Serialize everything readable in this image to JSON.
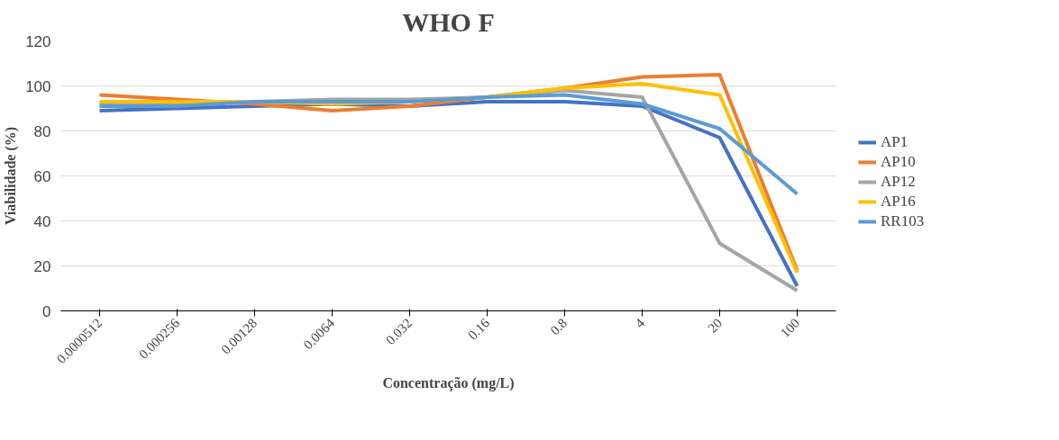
{
  "chart_data": {
    "type": "line",
    "title": "WHO F",
    "xlabel": "Concentração (mg/L)",
    "ylabel": "Viabilidade (%)",
    "categories": [
      "0.0000512",
      "0.000256",
      "0.00128",
      "0.0064",
      "0.032",
      "0.16",
      "0.8",
      "4",
      "20",
      "100"
    ],
    "series": [
      {
        "name": "AP1",
        "color": "#4472c4",
        "values": [
          89,
          90,
          91,
          92,
          91,
          93,
          93,
          91,
          77,
          11
        ]
      },
      {
        "name": "AP10",
        "color": "#ed7d31",
        "values": [
          96,
          94,
          92,
          89,
          91,
          95,
          99,
          104,
          105,
          18
        ]
      },
      {
        "name": "AP12",
        "color": "#a5a5a5",
        "values": [
          92,
          92,
          93,
          94,
          94,
          95,
          98,
          95,
          30,
          9
        ]
      },
      {
        "name": "AP16",
        "color": "#ffc000",
        "values": [
          93,
          93,
          93,
          92,
          93,
          95,
          99,
          101,
          96,
          17
        ]
      },
      {
        "name": "RR103",
        "color": "#5b9bd5",
        "values": [
          91,
          91,
          93,
          93,
          93,
          95,
          96,
          92,
          81,
          52
        ]
      }
    ],
    "ylim": [
      0,
      120
    ],
    "yticks": [
      0,
      20,
      40,
      60,
      80,
      100,
      120
    ],
    "grid": "y",
    "legend": "right",
    "marker": "none",
    "line_style": "solid"
  }
}
